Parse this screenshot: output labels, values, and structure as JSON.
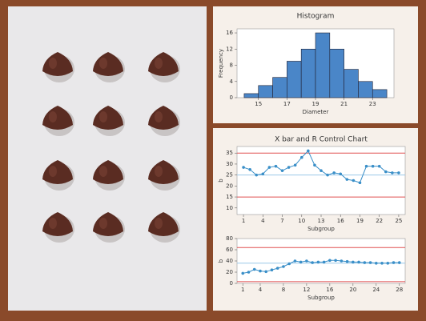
{
  "chart_data": [
    {
      "type": "histogram",
      "title": "Histogram",
      "xlabel": "Diameter",
      "ylabel": "Frequency",
      "color": "#4a86c8",
      "bins": [
        14,
        15,
        16,
        17,
        18,
        19,
        20,
        21,
        22,
        23,
        24
      ],
      "values": [
        1,
        3,
        5,
        9,
        12,
        16,
        12,
        7,
        4,
        2
      ],
      "xlim": [
        13.5,
        24.5
      ],
      "xticks": [
        15,
        17,
        19,
        21,
        23
      ],
      "ylim": [
        0,
        17
      ],
      "yticks": [
        0,
        4,
        8,
        12,
        16
      ]
    },
    {
      "type": "line",
      "title": "X bar and R Control Chart",
      "xlabel": "Subgroup",
      "ylabel": "b",
      "color": "#3a8fc8",
      "x": [
        1,
        2,
        3,
        4,
        5,
        6,
        7,
        8,
        9,
        10,
        11,
        12,
        13,
        14,
        15,
        16,
        17,
        18,
        19,
        20,
        21,
        22,
        23,
        24,
        25
      ],
      "values": [
        28.5,
        27.5,
        25,
        25.5,
        28.5,
        29,
        27,
        28.5,
        29.5,
        33,
        36,
        29.5,
        27,
        25,
        26,
        25.5,
        23,
        22.5,
        21.5,
        29,
        29,
        29,
        26.5,
        26,
        26
      ],
      "limits": [
        {
          "value": 35,
          "color": "#e05050"
        },
        {
          "value": 25,
          "color": "#9cc8e8"
        },
        {
          "value": 15,
          "color": "#e05050"
        }
      ],
      "xlim": [
        0,
        26
      ],
      "xticks": [
        1,
        4,
        7,
        10,
        13,
        16,
        19,
        22,
        25
      ],
      "ylim": [
        7,
        38
      ],
      "yticks": [
        10,
        15,
        20,
        25,
        30,
        35
      ]
    },
    {
      "type": "line",
      "xlabel": "Subgroup",
      "ylabel": "b",
      "color": "#3a8fc8",
      "x": [
        1,
        2,
        3,
        4,
        5,
        6,
        7,
        8,
        9,
        10,
        11,
        12,
        13,
        14,
        15,
        16,
        17,
        18,
        19,
        20,
        21,
        22,
        23,
        24,
        25,
        26,
        27,
        28
      ],
      "values": [
        18,
        20,
        25,
        22,
        21,
        24,
        27,
        30,
        35,
        40,
        38,
        40,
        37,
        38,
        38,
        41,
        41,
        40,
        39,
        38,
        38,
        37,
        37,
        36,
        36,
        36,
        37,
        37
      ],
      "limits": [
        {
          "value": 64,
          "color": "#e05050"
        },
        {
          "value": 36,
          "color": "#9cc8e8"
        },
        {
          "value": 3,
          "color": "#e05050"
        }
      ],
      "xlim": [
        0,
        29
      ],
      "xticks": [
        1,
        4,
        8,
        12,
        16,
        20,
        24,
        28
      ],
      "ylim": [
        0,
        80
      ],
      "yticks": [
        0,
        20,
        40,
        60,
        80
      ]
    }
  ]
}
